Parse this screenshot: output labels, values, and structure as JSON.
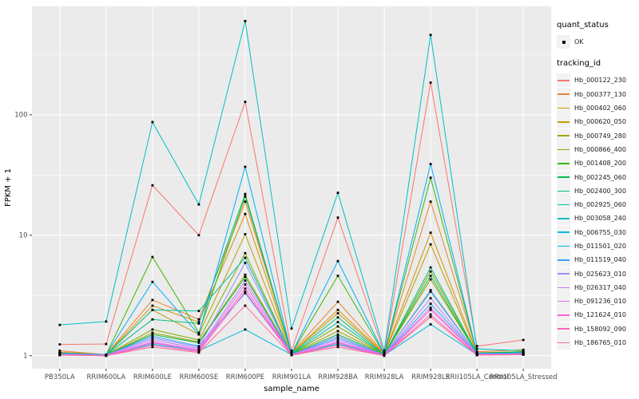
{
  "legend": {
    "quant_status_title": "quant_status",
    "quant_status_items": [
      {
        "label": "OK",
        "symbol": "point"
      }
    ],
    "tracking_id_title": "tracking_id"
  },
  "colors": {
    "panel_background": "#EBEBEB",
    "gridline": "#FFFFFF",
    "axis_text": "#4D4D4D",
    "axis_title": "#000000",
    "point": "#000000",
    "legend_key_background": "#F2F2F2"
  },
  "chart_data": {
    "type": "line",
    "title": "",
    "xlabel": "sample_name",
    "ylabel": "FPKM + 1",
    "y_scale": "log10",
    "y_ticks": [
      1,
      10,
      100
    ],
    "y_minor_ticks": [
      3.162,
      31.62,
      316.2
    ],
    "ylim": [
      0.78,
      794
    ],
    "grid": "on",
    "legend_position": "right",
    "point_shape": "small black square",
    "categories": [
      "PB350LA",
      "RRIM600LA",
      "RRIM600LE",
      "RRIM600SE",
      "RRIM600PE",
      "RRIM901LA",
      "RRIM928BA",
      "RRIM928LA",
      "RRIM928LE",
      "RRII105LA_Control",
      "RRII105LA_Stressed"
    ],
    "series": [
      {
        "name": "Hb_000122_230",
        "color": "#F8766D",
        "values": [
          1.24,
          1.25,
          26,
          10,
          128,
          1.1,
          14,
          1.05,
          185,
          1.2,
          1.35
        ]
      },
      {
        "name": "Hb_000377_130",
        "color": "#EA8331",
        "values": [
          1.1,
          1.02,
          2.9,
          2.0,
          19,
          1.06,
          2.8,
          1.05,
          19,
          1.08,
          1.12
        ]
      },
      {
        "name": "Hb_000402_060",
        "color": "#D89000",
        "values": [
          1.07,
          1.02,
          2.6,
          1.9,
          15,
          1.05,
          2.4,
          1.04,
          10.5,
          1.06,
          1.08
        ]
      },
      {
        "name": "Hb_000620_050",
        "color": "#C09B00",
        "values": [
          1.06,
          1.02,
          2.4,
          1.5,
          10.2,
          1.05,
          2.25,
          1.03,
          8.4,
          1.05,
          1.07
        ]
      },
      {
        "name": "Hb_000749_280",
        "color": "#A3A500",
        "values": [
          1.05,
          1.01,
          1.55,
          1.3,
          4.7,
          1.03,
          1.6,
          1.02,
          4.3,
          1.04,
          1.06
        ]
      },
      {
        "name": "Hb_000866_400",
        "color": "#7CAE00",
        "values": [
          1.04,
          1.01,
          1.65,
          1.35,
          7.1,
          1.03,
          1.75,
          1.02,
          5.0,
          1.04,
          1.06
        ]
      },
      {
        "name": "Hb_001408_200",
        "color": "#39B600",
        "values": [
          1.05,
          1.02,
          6.6,
          1.55,
          21,
          1.04,
          4.6,
          1.03,
          30,
          1.05,
          1.08
        ]
      },
      {
        "name": "Hb_002245_060",
        "color": "#00BB4E",
        "values": [
          1.04,
          1.01,
          1.5,
          1.28,
          4.5,
          1.03,
          1.5,
          1.02,
          4.6,
          1.03,
          1.05
        ]
      },
      {
        "name": "Hb_002400_300",
        "color": "#00BF7D",
        "values": [
          1.04,
          1.01,
          2.0,
          1.85,
          22,
          1.04,
          2.08,
          1.02,
          5.4,
          1.04,
          1.05
        ]
      },
      {
        "name": "Hb_002925_060",
        "color": "#00C1A3",
        "values": [
          1.03,
          1.01,
          2.4,
          2.35,
          6.5,
          1.03,
          1.9,
          1.02,
          3.4,
          1.03,
          1.04
        ]
      },
      {
        "name": "Hb_003058_240",
        "color": "#00BFC4",
        "values": [
          1.8,
          1.92,
          87,
          18,
          600,
          1.68,
          22.5,
          1.1,
          460,
          1.14,
          1.1
        ]
      },
      {
        "name": "Hb_006755_030",
        "color": "#00BAE0",
        "values": [
          1.02,
          1.01,
          1.25,
          1.1,
          1.65,
          1.02,
          1.25,
          1.01,
          1.82,
          1.02,
          1.03
        ]
      },
      {
        "name": "Hb_011501_020",
        "color": "#00B0F6",
        "values": [
          1.05,
          1.02,
          4.1,
          1.5,
          37,
          1.04,
          6.1,
          1.03,
          39,
          1.05,
          1.06
        ]
      },
      {
        "name": "Hb_011519_040",
        "color": "#35A2FF",
        "values": [
          1.03,
          1.01,
          1.45,
          1.2,
          3.3,
          1.02,
          1.4,
          1.01,
          2.7,
          1.03,
          1.04
        ]
      },
      {
        "name": "Hb_025623_010",
        "color": "#9590FF",
        "values": [
          1.03,
          1.01,
          1.4,
          1.18,
          5.9,
          1.02,
          1.45,
          1.01,
          3.5,
          1.03,
          1.04
        ]
      },
      {
        "name": "Hb_026317_040",
        "color": "#C77CFF",
        "values": [
          1.02,
          1.01,
          1.35,
          1.15,
          4.2,
          1.02,
          1.35,
          1.01,
          3.0,
          1.02,
          1.03
        ]
      },
      {
        "name": "Hb_091236_010",
        "color": "#E76BF3",
        "values": [
          1.02,
          1.0,
          1.3,
          1.12,
          3.9,
          1.01,
          1.3,
          1.01,
          2.5,
          1.02,
          1.03
        ]
      },
      {
        "name": "Hb_121624_010",
        "color": "#FA62DB",
        "values": [
          1.02,
          1.0,
          1.28,
          1.1,
          3.6,
          1.01,
          1.28,
          1.0,
          2.4,
          1.02,
          1.03
        ]
      },
      {
        "name": "Hb_158092_090",
        "color": "#FF62BC",
        "values": [
          1.01,
          1.0,
          1.22,
          1.08,
          3.4,
          1.01,
          1.22,
          1.0,
          2.2,
          1.01,
          1.02
        ]
      },
      {
        "name": "Hb_186765_010",
        "color": "#FF6A98",
        "values": [
          1.01,
          1.0,
          1.18,
          1.06,
          2.6,
          1.01,
          1.18,
          1.0,
          2.1,
          1.01,
          1.02
        ]
      }
    ]
  }
}
